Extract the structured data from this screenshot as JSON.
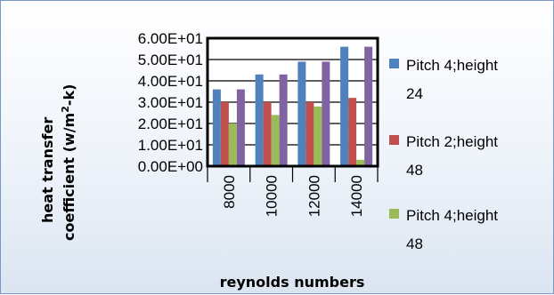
{
  "chart_data": {
    "type": "bar",
    "categories": [
      "8000",
      "10000",
      "12000",
      "14000"
    ],
    "series": [
      {
        "name": "Pitch 4;height 24",
        "values": [
          36,
          43,
          49,
          56
        ],
        "color": "#4f81bd"
      },
      {
        "name": "Pitch 2;height 48",
        "values": [
          30,
          30,
          30,
          32
        ],
        "color": "#c0504d"
      },
      {
        "name": "Pitch 4;height 48",
        "values": [
          20,
          24,
          28,
          3
        ],
        "color": "#9bbb59"
      },
      {
        "name": "",
        "values": [
          36,
          43,
          49,
          56
        ],
        "color": "#8064a2"
      }
    ],
    "ylim": [
      0,
      60
    ],
    "yticks": [
      "0.00E+00",
      "1.00E+01",
      "2.00E+01",
      "3.00E+01",
      "4.00E+01",
      "5.00E+01",
      "6.00E+01"
    ],
    "ylabel_line1": "heat transfer",
    "ylabel_line2_prefix": "coefficient (w/m",
    "ylabel_sup": "2",
    "ylabel_line2_suffix": "-k)",
    "xlabel": "reynolds numbers",
    "legend": [
      {
        "line1": "Pitch 4;height",
        "line2": "24"
      },
      {
        "line1": "Pitch 2;height",
        "line2": "48"
      },
      {
        "line1": "Pitch 4;height",
        "line2": "48"
      }
    ],
    "legend_position": "right"
  }
}
